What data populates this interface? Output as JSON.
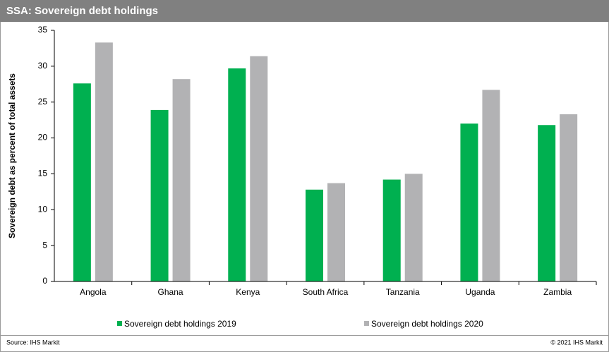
{
  "chart_data": {
    "type": "bar",
    "title": "SSA: Sovereign debt holdings",
    "y_label": "Sovereign debt as percent of total assets",
    "categories": [
      "Angola",
      "Ghana",
      "Kenya",
      "South Africa",
      "Tanzania",
      "Uganda",
      "Zambia"
    ],
    "series": [
      {
        "name": "Sovereign debt holdings 2019",
        "color": "#00b050",
        "values": [
          27.6,
          23.9,
          29.7,
          12.8,
          14.2,
          22.0,
          21.8
        ]
      },
      {
        "name": "Sovereign debt holdings 2020",
        "color": "#b2b2b4",
        "values": [
          33.3,
          28.2,
          31.4,
          13.7,
          15.0,
          26.7,
          23.3
        ]
      }
    ],
    "ylim": [
      0,
      35
    ],
    "yticks": [
      0,
      5,
      10,
      15,
      20,
      25,
      30,
      35
    ],
    "grid": false,
    "legend": "bottom",
    "source": "Source: IHS Markit",
    "copyright": "© 2021 IHS Markit"
  }
}
